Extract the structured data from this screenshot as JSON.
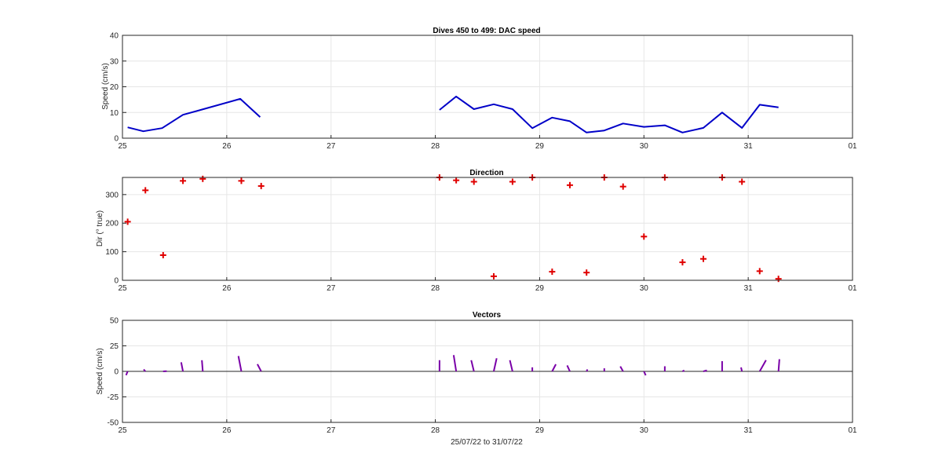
{
  "colors": {
    "speed_line": "#0000c8",
    "direction_marker": "#e00000",
    "vector": "#7a00a8",
    "grid": "#e6e6e6",
    "axis": "#262626"
  },
  "chart_data": [
    {
      "type": "line",
      "title": "Dives 450 to 499: DAC speed",
      "xlabel": "",
      "ylabel": "Speed (cm/s)",
      "xlim": [
        25,
        32
      ],
      "ylim": [
        0,
        40
      ],
      "x_tick_labels": [
        "25",
        "26",
        "27",
        "28",
        "29",
        "30",
        "31",
        "01"
      ],
      "y_ticks": [
        0,
        10,
        20,
        30,
        40
      ],
      "grid": true,
      "series": [
        {
          "x": [
            25.05,
            25.2,
            25.38,
            25.58,
            25.75,
            26.13,
            26.32
          ],
          "y": [
            4.2,
            2.7,
            3.9,
            9.1,
            11.0,
            15.3,
            8.2
          ]
        },
        {
          "x": [
            28.04,
            28.2,
            28.37,
            28.56,
            28.74,
            28.93,
            29.12,
            29.29,
            29.45,
            29.62,
            29.8,
            30.0,
            30.2,
            30.37,
            30.57,
            30.75,
            30.94,
            31.11,
            31.29
          ],
          "y": [
            11.0,
            16.2,
            11.3,
            13.2,
            11.3,
            3.9,
            8.0,
            6.6,
            2.2,
            3.0,
            5.7,
            4.4,
            5.0,
            2.2,
            4.0,
            10.0,
            4.0,
            13.0,
            12.0
          ]
        }
      ]
    },
    {
      "type": "scatter",
      "title": "Direction",
      "xlabel": "",
      "ylabel": "Dir (° true)",
      "xlim": [
        25,
        32
      ],
      "ylim": [
        0,
        360
      ],
      "x_tick_labels": [
        "25",
        "26",
        "27",
        "28",
        "29",
        "30",
        "31",
        "01"
      ],
      "y_ticks": [
        0,
        100,
        200,
        300
      ],
      "grid": true,
      "series": [
        {
          "x": [
            25.05,
            25.22,
            25.39,
            25.58,
            25.77,
            26.14,
            26.33,
            28.04,
            28.2,
            28.37,
            28.56,
            28.74,
            28.93,
            29.12,
            29.29,
            29.45,
            29.62,
            29.8,
            30.0,
            30.2,
            30.37,
            30.57,
            30.75,
            30.94,
            31.11,
            31.29
          ],
          "y": [
            205,
            315,
            88,
            348,
            355,
            348,
            330,
            360,
            350,
            345,
            14,
            345,
            360,
            30,
            333,
            27,
            360,
            328,
            153,
            360,
            63,
            75,
            360,
            345,
            32,
            5
          ]
        }
      ]
    },
    {
      "type": "vector",
      "title": "Vectors",
      "xlabel": "25/07/22 to 31/07/22",
      "ylabel": "Speed (cm/s)",
      "xlim": [
        25,
        32
      ],
      "ylim": [
        -50,
        50
      ],
      "x_tick_labels": [
        "25",
        "26",
        "27",
        "28",
        "29",
        "30",
        "31",
        "01"
      ],
      "y_ticks": [
        50,
        25,
        0,
        -25,
        -50
      ],
      "y_tick_labels": [
        "50",
        "25",
        "0",
        "-25",
        "-50"
      ],
      "grid": true,
      "series": [
        {
          "x": [
            25.05,
            25.22,
            25.39,
            25.58,
            25.77,
            26.14,
            26.33,
            28.04,
            28.2,
            28.37,
            28.56,
            28.74,
            28.93,
            29.12,
            29.29,
            29.45,
            29.62,
            29.8,
            30.0,
            30.2,
            30.37,
            30.57,
            30.75,
            30.94,
            31.11,
            31.29
          ],
          "speed": [
            4.2,
            2.7,
            3.9,
            9.1,
            11.0,
            15.3,
            8.2,
            11.0,
            16.2,
            11.3,
            13.2,
            11.3,
            3.9,
            8.0,
            6.6,
            2.2,
            3.0,
            5.7,
            4.4,
            5.0,
            2.2,
            4.0,
            10.0,
            4.0,
            13.0,
            12.0
          ],
          "direction": [
            205,
            315,
            88,
            348,
            355,
            348,
            330,
            360,
            350,
            345,
            14,
            345,
            360,
            30,
            333,
            27,
            360,
            328,
            153,
            360,
            63,
            75,
            360,
            345,
            32,
            5
          ]
        }
      ]
    }
  ]
}
